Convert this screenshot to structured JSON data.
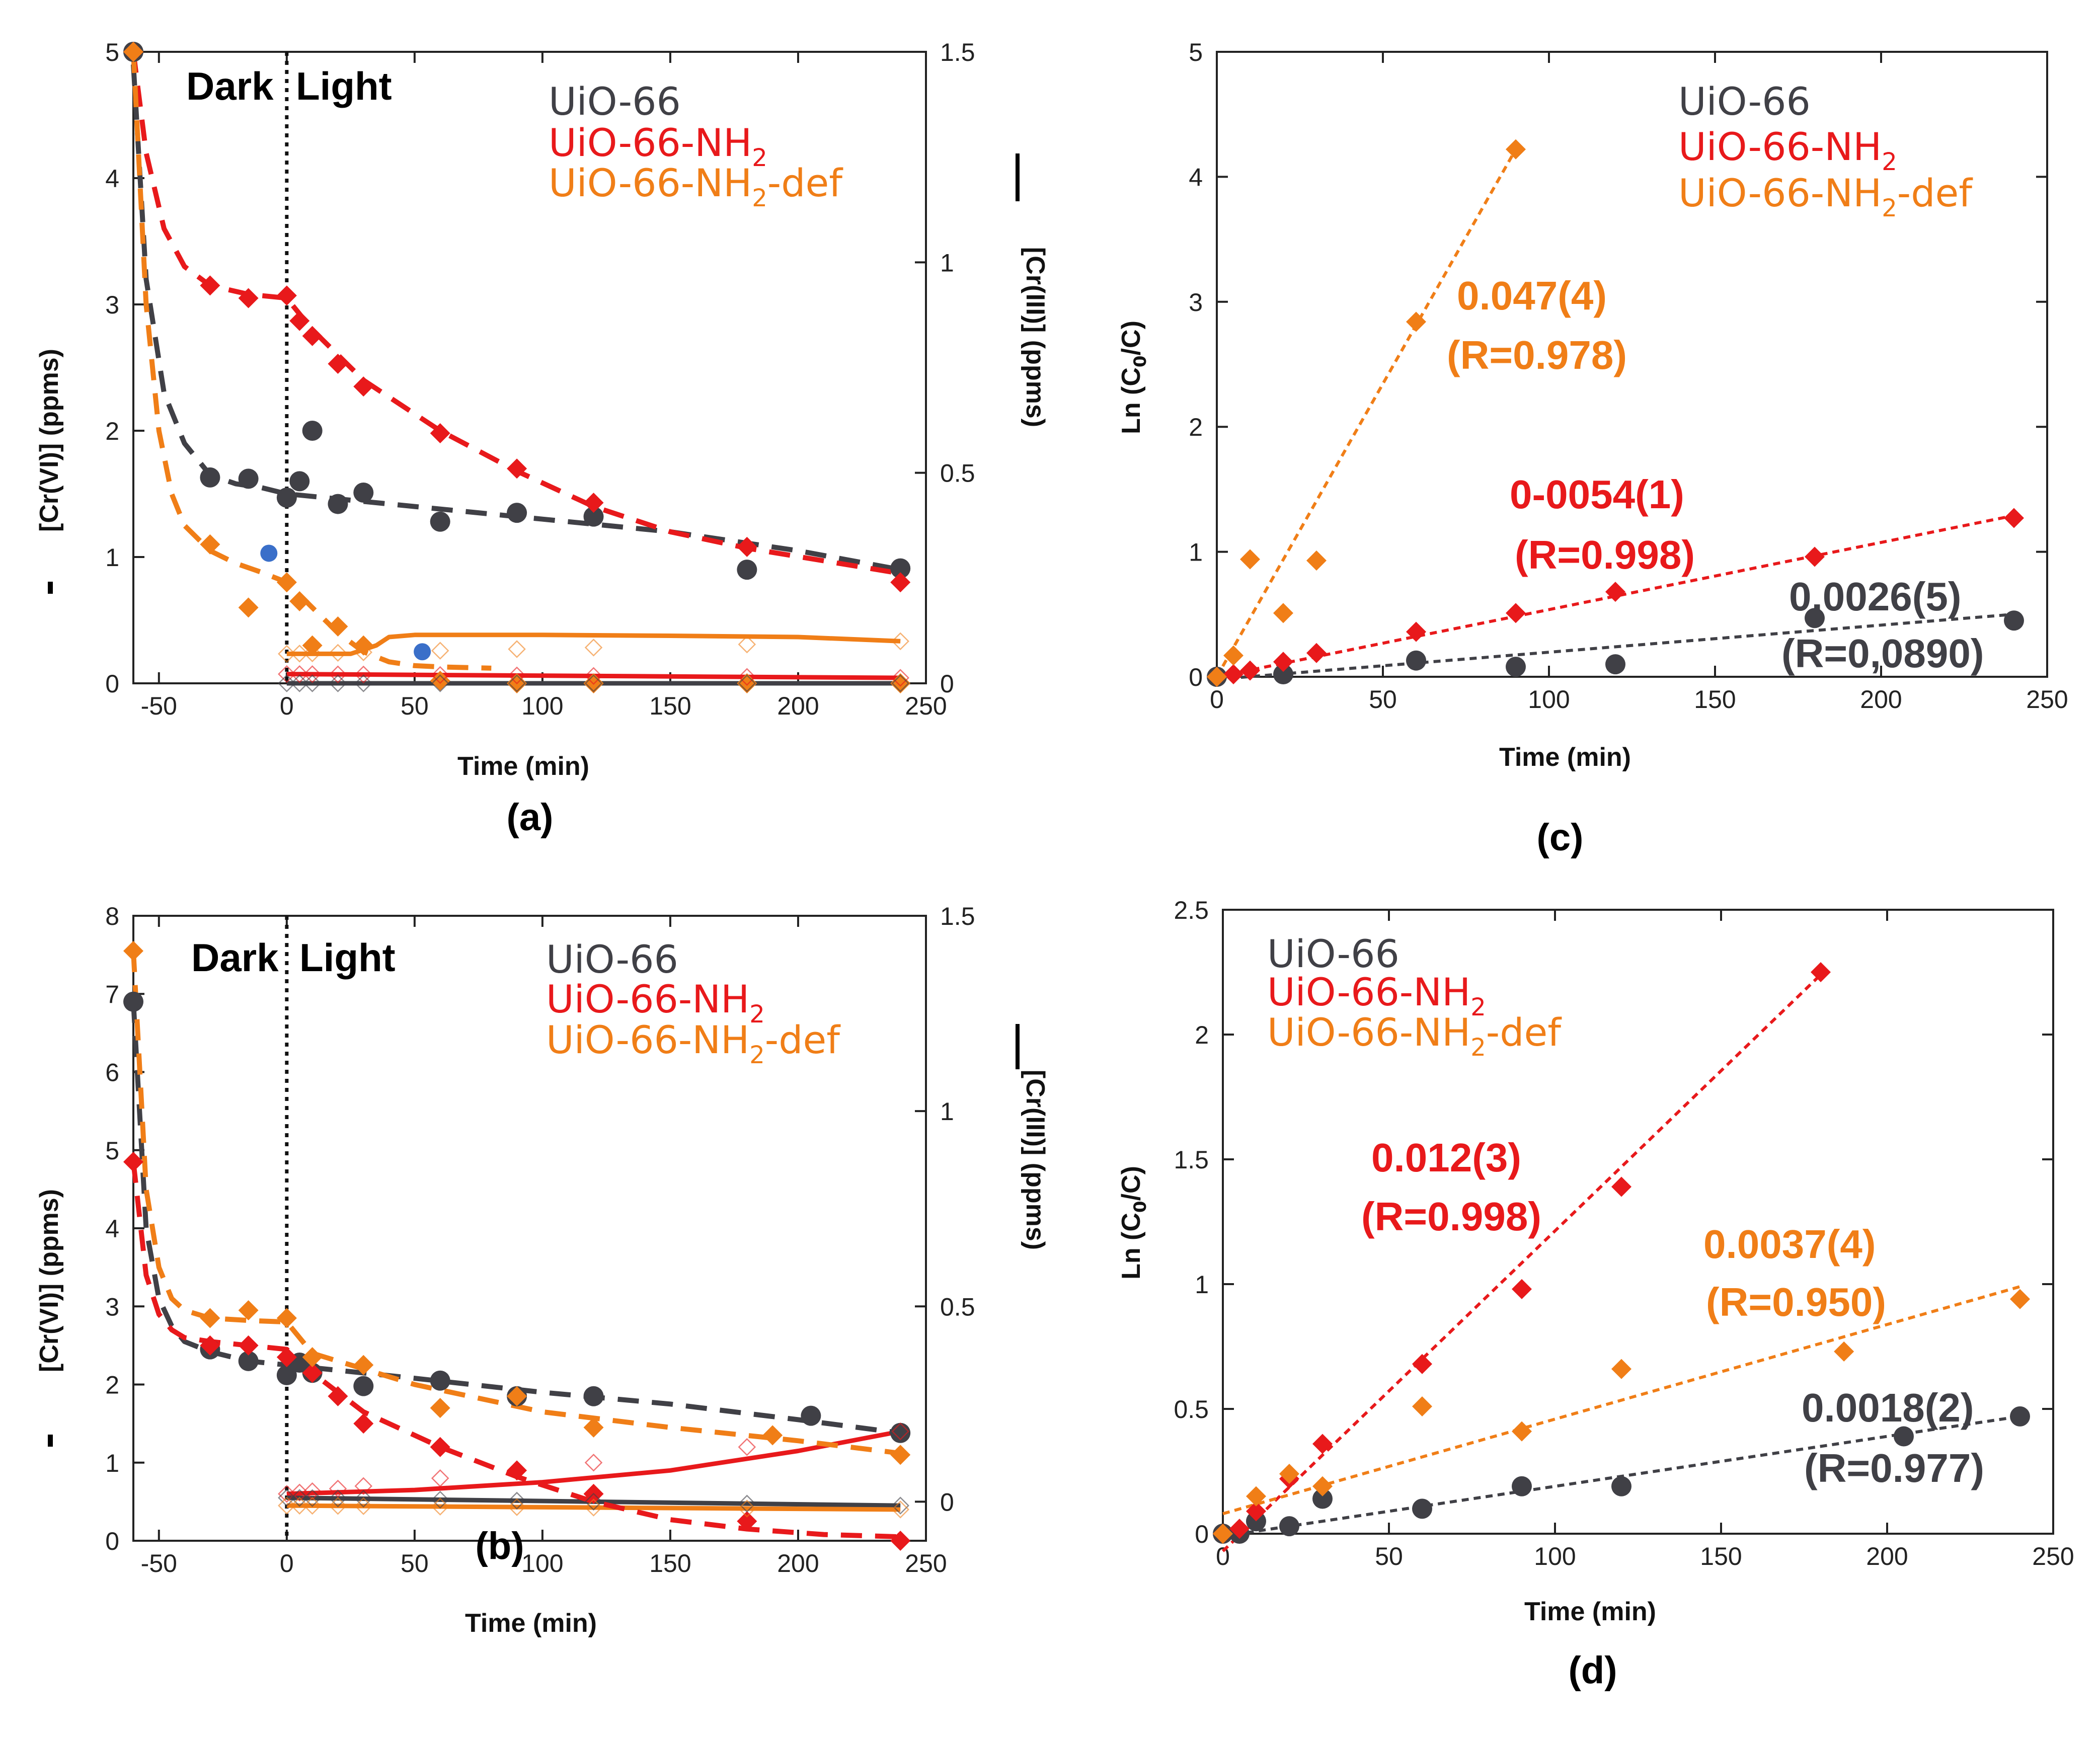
{
  "colors": {
    "uio66": "#404046",
    "nh2": "#e8191b",
    "nh2def": "#f07e17",
    "blue": "#3a6fc9"
  },
  "legend": [
    "UiO-66",
    "UiO-66-NH2",
    "UiO-66-NH2-def"
  ],
  "legend_parts": {
    "uio66": "UiO-66",
    "nh2_base": "UiO-66-NH",
    "sub": "2",
    "def_suffix": "-def"
  },
  "chart_data": [
    {
      "id": "a",
      "panel_label": "(a)",
      "type": "scatter",
      "xlabel": "Time (min)",
      "ylabel": "[Cr(VI)] (ppms)",
      "y2label": "[Cr(III)] (ppms)",
      "xlim": [
        -60,
        250
      ],
      "ylim": [
        0,
        5
      ],
      "y2lim": [
        0,
        1.5
      ],
      "xticks": [
        -50,
        0,
        50,
        100,
        150,
        200,
        250
      ],
      "yticks": [
        0,
        1,
        2,
        3,
        4,
        5
      ],
      "y2ticks": [
        "0",
        "0.5",
        "1",
        "1.5"
      ],
      "annotations": [
        "Dark",
        "Light"
      ],
      "dark_light_boundary": 0,
      "series": [
        {
          "name": "UiO-66",
          "key": "uio66",
          "marker": "circle",
          "x": [
            -60,
            -30,
            -15,
            0,
            5,
            10,
            20,
            30,
            60,
            90,
            120,
            180,
            240
          ],
          "y": [
            5.0,
            1.63,
            1.62,
            1.47,
            1.6,
            2.0,
            1.42,
            1.51,
            1.28,
            1.35,
            1.32,
            0.9,
            0.91
          ],
          "fit_x": [
            -60,
            -55,
            -48,
            -40,
            -30,
            -20,
            -10,
            0,
            50,
            100,
            150,
            200,
            240
          ],
          "fit_y": [
            4.9,
            3.2,
            2.3,
            1.9,
            1.65,
            1.58,
            1.55,
            1.5,
            1.4,
            1.3,
            1.2,
            1.05,
            0.9
          ]
        },
        {
          "name": "UiO-66-NH2",
          "key": "nh2",
          "marker": "diamond",
          "x": [
            -60,
            -30,
            -15,
            0,
            5,
            10,
            20,
            30,
            60,
            90,
            120,
            180,
            240
          ],
          "y": [
            5.0,
            3.15,
            3.05,
            3.07,
            2.87,
            2.75,
            2.53,
            2.35,
            1.98,
            1.7,
            1.43,
            1.08,
            0.8
          ],
          "fit_x": [
            -60,
            -55,
            -48,
            -40,
            -30,
            -15,
            0,
            10,
            30,
            60,
            90,
            120,
            150,
            180,
            210,
            240
          ],
          "fit_y": [
            5.0,
            4.2,
            3.6,
            3.3,
            3.15,
            3.08,
            3.05,
            2.8,
            2.4,
            2.0,
            1.68,
            1.4,
            1.2,
            1.07,
            0.97,
            0.87
          ]
        },
        {
          "name": "UiO-66-NH2-def",
          "key": "nh2def",
          "marker": "diamond",
          "x": [
            -60,
            -30,
            -15,
            0,
            5,
            10,
            20,
            30,
            60,
            90,
            120,
            180,
            240
          ],
          "y": [
            5.0,
            1.1,
            0.6,
            0.8,
            0.65,
            0.3,
            0.45,
            0.3,
            0.02,
            0.0,
            0.0,
            0.0,
            0.0
          ],
          "fit_x": [
            -60,
            -55,
            -50,
            -45,
            -40,
            -30,
            -20,
            -10,
            0,
            10,
            20,
            30,
            40,
            50,
            60,
            80
          ],
          "fit_y": [
            5.0,
            3.0,
            2.0,
            1.5,
            1.25,
            1.05,
            0.95,
            0.88,
            0.8,
            0.6,
            0.4,
            0.25,
            0.17,
            0.14,
            0.13,
            0.12
          ]
        },
        {
          "name": "extra points",
          "key": "blue",
          "marker": "circle",
          "x": [
            -7,
            53
          ],
          "y": [
            1.03,
            0.25
          ]
        }
      ],
      "cr3_lines": [
        {
          "key": "nh2def",
          "x": [
            0,
            20,
            25,
            30,
            35,
            40,
            50,
            60,
            100,
            150,
            200,
            240
          ],
          "y": [
            0.07,
            0.07,
            0.07,
            0.08,
            0.09,
            0.11,
            0.115,
            0.115,
            0.115,
            0.113,
            0.11,
            0.1
          ]
        },
        {
          "key": "nh2",
          "x": [
            0,
            240
          ],
          "y": [
            0.022,
            0.013
          ]
        },
        {
          "key": "uio66",
          "x": [
            0,
            240
          ],
          "y": [
            0.0,
            0.0
          ]
        }
      ]
    },
    {
      "id": "b",
      "panel_label": "(b)",
      "type": "scatter",
      "xlabel": "Time (min)",
      "ylabel": "[Cr(VI)] (ppms)",
      "y2label": "[Cr(III)] (ppms)",
      "xlim": [
        -60,
        250
      ],
      "ylim": [
        0,
        8
      ],
      "y2lim": [
        -0.1,
        1.5
      ],
      "xticks": [
        -50,
        0,
        50,
        100,
        150,
        200,
        250
      ],
      "yticks": [
        0,
        1,
        2,
        3,
        4,
        5,
        6,
        7,
        8
      ],
      "y2ticks": [
        "0",
        "0.5",
        "1",
        "1.5"
      ],
      "annotations": [
        "Dark",
        "Light"
      ],
      "dark_light_boundary": 0,
      "series": [
        {
          "name": "UiO-66",
          "key": "uio66",
          "marker": "circle",
          "x": [
            -60,
            -30,
            -15,
            0,
            5,
            10,
            30,
            60,
            90,
            120,
            205,
            240
          ],
          "y": [
            6.9,
            2.45,
            2.3,
            2.12,
            2.28,
            2.15,
            1.98,
            2.05,
            1.85,
            1.85,
            1.6,
            1.38
          ],
          "fit_x": [
            -60,
            -55,
            -50,
            -45,
            -40,
            -30,
            -15,
            0,
            50,
            100,
            150,
            200,
            240
          ],
          "fit_y": [
            6.9,
            4.0,
            3.1,
            2.75,
            2.55,
            2.42,
            2.3,
            2.25,
            2.08,
            1.9,
            1.75,
            1.55,
            1.38
          ]
        },
        {
          "name": "UiO-66-NH2",
          "key": "nh2",
          "marker": "diamond",
          "x": [
            -60,
            -30,
            -15,
            0,
            10,
            20,
            30,
            60,
            90,
            120,
            180,
            240
          ],
          "y": [
            4.85,
            2.5,
            2.5,
            2.35,
            2.15,
            1.85,
            1.5,
            1.2,
            0.9,
            0.6,
            0.25,
            0.0
          ],
          "fit_x": [
            -60,
            -55,
            -50,
            -45,
            -40,
            -30,
            -15,
            0,
            10,
            30,
            60,
            90,
            120,
            150,
            180,
            210,
            240
          ],
          "fit_y": [
            4.85,
            3.4,
            2.9,
            2.7,
            2.6,
            2.55,
            2.5,
            2.45,
            2.15,
            1.65,
            1.2,
            0.82,
            0.5,
            0.27,
            0.15,
            0.08,
            0.05
          ]
        },
        {
          "name": "UiO-66-NH2-def",
          "key": "nh2def",
          "marker": "diamond",
          "x": [
            -60,
            -30,
            -15,
            0,
            10,
            30,
            60,
            90,
            120,
            190,
            240
          ],
          "y": [
            7.55,
            2.85,
            2.95,
            2.85,
            2.35,
            2.25,
            1.7,
            1.85,
            1.45,
            1.35,
            1.1
          ],
          "fit_x": [
            -60,
            -55,
            -50,
            -45,
            -40,
            -30,
            -15,
            0,
            10,
            50,
            100,
            150,
            200,
            240
          ],
          "fit_y": [
            7.55,
            4.5,
            3.5,
            3.1,
            2.95,
            2.85,
            2.82,
            2.8,
            2.4,
            2.0,
            1.65,
            1.45,
            1.28,
            1.12
          ]
        }
      ],
      "cr3_lines": [
        {
          "key": "nh2",
          "x": [
            0,
            50,
            100,
            150,
            200,
            240
          ],
          "y": [
            0.02,
            0.03,
            0.05,
            0.08,
            0.13,
            0.18
          ]
        },
        {
          "key": "uio66",
          "x": [
            0,
            240
          ],
          "y": [
            0.01,
            -0.01
          ]
        },
        {
          "key": "nh2def",
          "x": [
            0,
            240
          ],
          "y": [
            -0.01,
            -0.02
          ]
        }
      ]
    },
    {
      "id": "c",
      "panel_label": "(c)",
      "type": "scatter",
      "xlabel": "Time (min)",
      "ylabel": "Ln (C0/C)",
      "xlim": [
        0,
        250
      ],
      "ylim": [
        0,
        5
      ],
      "xticks": [
        0,
        50,
        100,
        150,
        200,
        250
      ],
      "yticks": [
        0,
        1,
        2,
        3,
        4,
        5
      ],
      "annotations": [
        "0.047(4)",
        "(R=0.978)",
        "0-0054(1)",
        "(R=0.998)",
        "0,0026(5)",
        "(R=0,0890)"
      ],
      "series": [
        {
          "name": "UiO-66",
          "key": "uio66",
          "marker": "circle",
          "x": [
            0,
            20,
            60,
            90,
            120,
            180,
            240
          ],
          "y": [
            0,
            0.02,
            0.13,
            0.08,
            0.1,
            0.47,
            0.45
          ],
          "fit": {
            "x": [
              0,
              240
            ],
            "y": [
              -0.02,
              0.5
            ]
          }
        },
        {
          "name": "UiO-66-NH2",
          "key": "nh2",
          "marker": "diamond",
          "x": [
            0,
            5,
            10,
            20,
            30,
            60,
            90,
            120,
            180,
            240
          ],
          "y": [
            0,
            0.02,
            0.05,
            0.12,
            0.19,
            0.36,
            0.51,
            0.68,
            0.96,
            1.27
          ],
          "fit": {
            "x": [
              0,
              240
            ],
            "y": [
              0.0,
              1.29
            ]
          }
        },
        {
          "name": "UiO-66-NH2-def",
          "key": "nh2def",
          "marker": "diamond",
          "x": [
            0,
            5,
            10,
            20,
            30,
            60,
            90
          ],
          "y": [
            0,
            0.17,
            0.94,
            0.51,
            0.93,
            2.84,
            4.22
          ],
          "fit": {
            "x": [
              0,
              90
            ],
            "y": [
              0.0,
              4.22
            ]
          }
        }
      ]
    },
    {
      "id": "d",
      "panel_label": "(d)",
      "type": "scatter",
      "xlabel": "Time (min)",
      "ylabel": "Ln (C0/C)",
      "xlim": [
        0,
        250
      ],
      "ylim": [
        0,
        2.5
      ],
      "xticks": [
        0,
        50,
        100,
        150,
        200,
        250
      ],
      "yticks": [
        "0",
        "0.5",
        "1",
        "1.5",
        "2",
        "2.5"
      ],
      "annotations": [
        "0.012(3)",
        "(R=0.998)",
        "0.0037(4)",
        "(R=0.950)",
        "0.0018(2)",
        "(R=0.977)"
      ],
      "series": [
        {
          "name": "UiO-66",
          "key": "uio66",
          "marker": "circle",
          "x": [
            0,
            5,
            10,
            20,
            30,
            60,
            90,
            120,
            205,
            240
          ],
          "y": [
            0,
            0.0,
            0.05,
            0.03,
            0.14,
            0.1,
            0.19,
            0.19,
            0.39,
            0.47
          ],
          "fit": {
            "x": [
              0,
              240
            ],
            "y": [
              -0.01,
              0.47
            ]
          }
        },
        {
          "name": "UiO-66-NH2",
          "key": "nh2",
          "marker": "diamond",
          "x": [
            0,
            5,
            10,
            20,
            30,
            60,
            90,
            120,
            180
          ],
          "y": [
            0,
            0.02,
            0.09,
            0.22,
            0.36,
            0.68,
            0.98,
            1.39,
            2.25
          ],
          "fit": {
            "x": [
              0,
              180
            ],
            "y": [
              -0.07,
              2.24
            ]
          }
        },
        {
          "name": "UiO-66-NH2-def",
          "key": "nh2def",
          "marker": "diamond",
          "x": [
            0,
            10,
            20,
            30,
            60,
            90,
            120,
            187,
            240
          ],
          "y": [
            0,
            0.15,
            0.24,
            0.19,
            0.51,
            0.41,
            0.66,
            0.73,
            0.94
          ],
          "fit": {
            "x": [
              0,
              240
            ],
            "y": [
              0.08,
              0.99
            ]
          }
        }
      ]
    }
  ]
}
